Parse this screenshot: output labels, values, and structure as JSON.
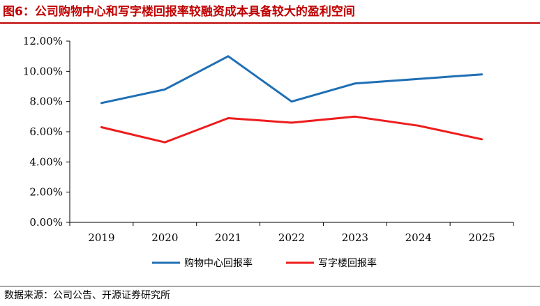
{
  "figure": {
    "title": "图6：公司购物中心和写字楼回报率较融资成本具备较大的盈利空间",
    "source": "数据来源：公司公告、开源证券研究所"
  },
  "chart_data": {
    "type": "line",
    "x": [
      "2019",
      "2020",
      "2021",
      "2022",
      "2023",
      "2024",
      "2025"
    ],
    "y_ticks": [
      "0.00%",
      "2.00%",
      "4.00%",
      "6.00%",
      "8.00%",
      "10.00%",
      "12.00%"
    ],
    "ylim": [
      0,
      12
    ],
    "grid": false,
    "legend_position": "bottom",
    "series": [
      {
        "name": "购物中心回报率",
        "color": "#1f6fb5",
        "values": [
          7.9,
          8.8,
          11.0,
          8.0,
          9.2,
          9.5,
          9.8
        ]
      },
      {
        "name": "写字楼回报率",
        "color": "#ee1c1c",
        "values": [
          6.3,
          5.3,
          6.9,
          6.6,
          7.0,
          6.4,
          5.5
        ]
      }
    ]
  }
}
